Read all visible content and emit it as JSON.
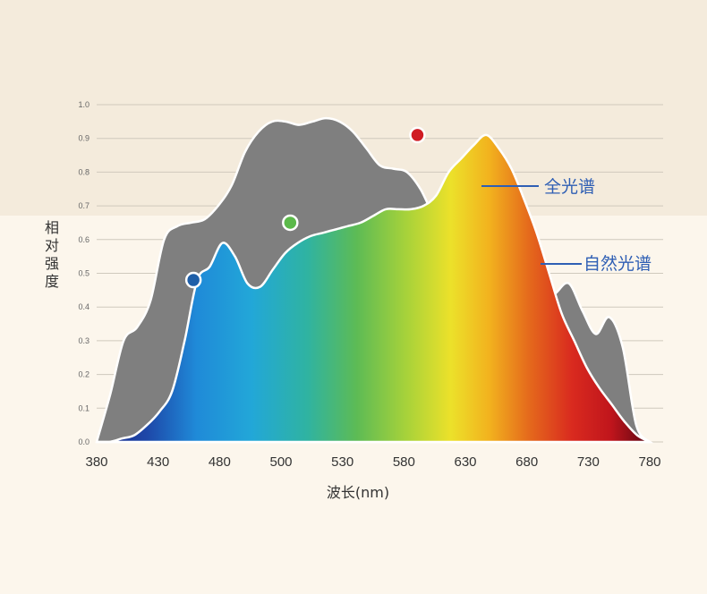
{
  "colors": {
    "bg_top": "#f4ebdc",
    "bg_bottom": "#fcf6ec",
    "grid": "#cfc9bd",
    "natural_fill": "#7f7f7f",
    "legend_blue": "#2f5fb4",
    "dot_blue": "#1f5fa8",
    "dot_green": "#5bb94a",
    "dot_red": "#d01c24"
  },
  "chart_data": {
    "type": "area",
    "xlabel": "波长(nm)",
    "ylabel": "相对强度",
    "xlim": [
      380,
      780
    ],
    "ylim": [
      0,
      1.0
    ],
    "x_ticks": [
      380,
      430,
      480,
      500,
      530,
      580,
      630,
      680,
      730,
      780
    ],
    "x_tick_labels": [
      "380",
      "430",
      "480",
      "500",
      "530",
      "580",
      "630",
      "680",
      "730",
      "780"
    ],
    "y_ticks": [
      0.0,
      0.1,
      0.2,
      0.3,
      0.4,
      0.5,
      0.6,
      0.7,
      0.8,
      0.9,
      1.0
    ],
    "y_tick_labels": [
      "0.0",
      "0.1",
      "0.2",
      "0.3",
      "0.4",
      "0.5",
      "0.6",
      "0.7",
      "0.8",
      "0.9",
      "1.0"
    ],
    "grid": true,
    "series": [
      {
        "name": "自然光谱",
        "color": "#7f7f7f",
        "values": [
          0,
          0.14,
          0.3,
          0.34,
          0.42,
          0.6,
          0.64,
          0.65,
          0.66,
          0.7,
          0.76,
          0.86,
          0.92,
          0.95,
          0.95,
          0.94,
          0.95,
          0.96,
          0.95,
          0.92,
          0.87,
          0.82,
          0.81,
          0.8,
          0.75,
          0.67,
          0.62,
          0.57,
          0.53,
          0.53,
          0.52,
          0.47,
          0.41,
          0.41,
          0.44,
          0.47,
          0.39,
          0.32,
          0.37,
          0.28,
          0.05,
          0.0
        ]
      },
      {
        "name": "全光谱",
        "color": "spectrum",
        "values": [
          0,
          0,
          0.01,
          0.02,
          0.05,
          0.09,
          0.15,
          0.3,
          0.48,
          0.52,
          0.59,
          0.55,
          0.47,
          0.46,
          0.51,
          0.56,
          0.59,
          0.61,
          0.62,
          0.63,
          0.64,
          0.65,
          0.67,
          0.69,
          0.69,
          0.69,
          0.7,
          0.73,
          0.8,
          0.84,
          0.88,
          0.91,
          0.87,
          0.81,
          0.72,
          0.62,
          0.5,
          0.38,
          0.3,
          0.22,
          0.16,
          0.11,
          0.06,
          0.02,
          0
        ]
      }
    ],
    "markers": [
      {
        "series": "全光谱",
        "x": 450,
        "y": 0.48,
        "color": "#1f5fa8"
      },
      {
        "series": "全光谱",
        "x": 520,
        "y": 0.65,
        "color": "#5bb94a"
      },
      {
        "series": "全光谱",
        "x": 612,
        "y": 0.91,
        "color": "#d01c24"
      }
    ],
    "annotations": [
      {
        "text": "全光谱",
        "series": "全光谱"
      },
      {
        "text": "自然光谱",
        "series": "自然光谱"
      }
    ]
  }
}
